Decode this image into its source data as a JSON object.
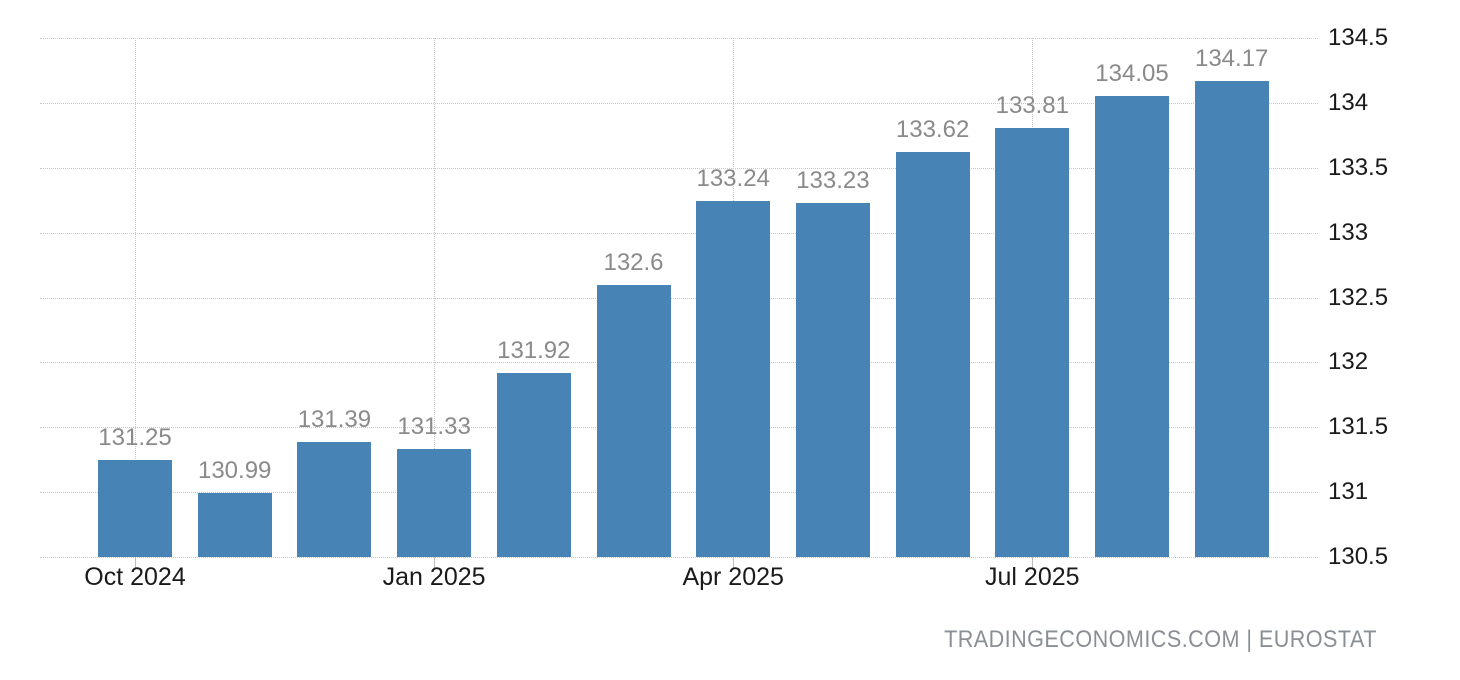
{
  "chart_data": {
    "type": "bar",
    "title": "",
    "values": [
      131.25,
      130.99,
      131.39,
      131.33,
      131.92,
      132.6,
      133.24,
      133.23,
      133.62,
      133.81,
      134.05,
      134.17
    ],
    "bar_labels": [
      "131.25",
      "130.99",
      "131.39",
      "131.33",
      "131.92",
      "132.6",
      "133.24",
      "133.23",
      "133.62",
      "133.81",
      "134.05",
      "134.17"
    ],
    "x_ticks": [
      {
        "label": "Oct 2024",
        "bar_index": 0
      },
      {
        "label": "Jan 2025",
        "bar_index": 3
      },
      {
        "label": "Apr 2025",
        "bar_index": 6
      },
      {
        "label": "Jul 2025",
        "bar_index": 9
      }
    ],
    "y_ticks": [
      134.5,
      134,
      133.5,
      133,
      132.5,
      132,
      131.5,
      131,
      130.5
    ],
    "y_tick_labels": [
      "134.5",
      "134",
      "133.5",
      "133",
      "132.5",
      "132",
      "131.5",
      "131",
      "130.5"
    ],
    "ylim": [
      130.5,
      134.5
    ],
    "y_axis_position": "right",
    "grid": "dotted",
    "legend": "none",
    "xlabel": "",
    "ylabel": ""
  },
  "colors": {
    "bar": "#4783b4",
    "bar_label": "#8a8a8a",
    "axis_text": "#1a1a1a",
    "gridline": "#c9c9c9",
    "attribution": "#8a8f96",
    "background": "#ffffff"
  },
  "attribution": "TRADINGECONOMICS.COM | EUROSTAT"
}
